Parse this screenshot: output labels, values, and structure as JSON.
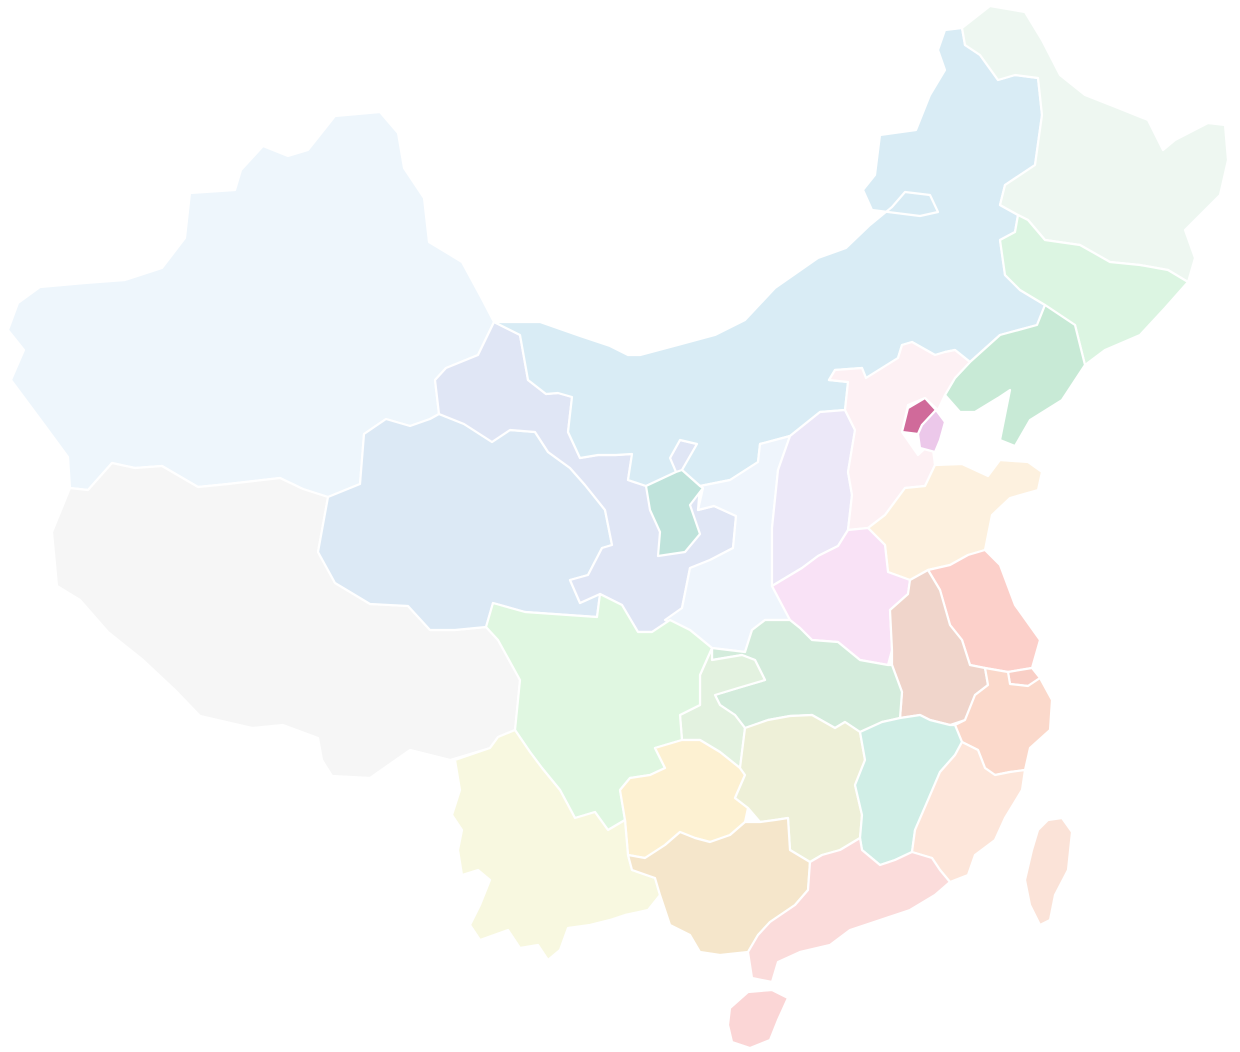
{
  "map": {
    "regions": [
      {
        "id": "xinjiang",
        "color": "#eef6fc",
        "highlighted": false
      },
      {
        "id": "tibet",
        "color": "#f6f6f6",
        "highlighted": false
      },
      {
        "id": "qinghai",
        "color": "#dce9f5",
        "highlighted": false
      },
      {
        "id": "gansu",
        "color": "#e0e6f5",
        "highlighted": false
      },
      {
        "id": "inner-mongolia",
        "color": "#d9ecf5",
        "highlighted": false
      },
      {
        "id": "heilongjiang",
        "color": "#eef7f1",
        "highlighted": false
      },
      {
        "id": "jilin",
        "color": "#dcf5e2",
        "highlighted": false
      },
      {
        "id": "liaoning",
        "color": "#c8ead6",
        "highlighted": false
      },
      {
        "id": "ningxia",
        "color": "#bfe3db",
        "highlighted": false
      },
      {
        "id": "shaanxi",
        "color": "#eff5fc",
        "highlighted": false
      },
      {
        "id": "shanxi",
        "color": "#ece8f8",
        "highlighted": false
      },
      {
        "id": "hebei",
        "color": "#fdf1f4",
        "highlighted": false
      },
      {
        "id": "beijing",
        "color": "#d06a9a",
        "highlighted": true
      },
      {
        "id": "tianjin",
        "color": "#ecc8ea",
        "highlighted": false
      },
      {
        "id": "shandong",
        "color": "#fdf1df",
        "highlighted": false
      },
      {
        "id": "henan",
        "color": "#f9e2f6",
        "highlighted": false
      },
      {
        "id": "jiangsu",
        "color": "#fcd0ca",
        "highlighted": false
      },
      {
        "id": "anhui",
        "color": "#f0d5cb",
        "highlighted": false
      },
      {
        "id": "shanghai",
        "color": "#f9cfc6",
        "highlighted": false
      },
      {
        "id": "zhejiang",
        "color": "#fbd9cb",
        "highlighted": false
      },
      {
        "id": "hubei",
        "color": "#d4ecdc",
        "highlighted": false
      },
      {
        "id": "chongqing",
        "color": "#e3f2e0",
        "highlighted": false
      },
      {
        "id": "sichuan",
        "color": "#e0f7e1",
        "highlighted": false
      },
      {
        "id": "guizhou",
        "color": "#fdf1d2",
        "highlighted": false
      },
      {
        "id": "hunan",
        "color": "#eef0d8",
        "highlighted": false
      },
      {
        "id": "jiangxi",
        "color": "#d0eee6",
        "highlighted": false
      },
      {
        "id": "fujian",
        "color": "#fde6da",
        "highlighted": false
      },
      {
        "id": "yunnan",
        "color": "#f8f8e0",
        "highlighted": false
      },
      {
        "id": "guangxi",
        "color": "#f5e6cb",
        "highlighted": false
      },
      {
        "id": "guangdong",
        "color": "#fbdcdb",
        "highlighted": false
      },
      {
        "id": "taiwan",
        "color": "#fbe3d8",
        "highlighted": false
      },
      {
        "id": "hainan",
        "color": "#fbd6d6",
        "highlighted": false
      }
    ]
  }
}
